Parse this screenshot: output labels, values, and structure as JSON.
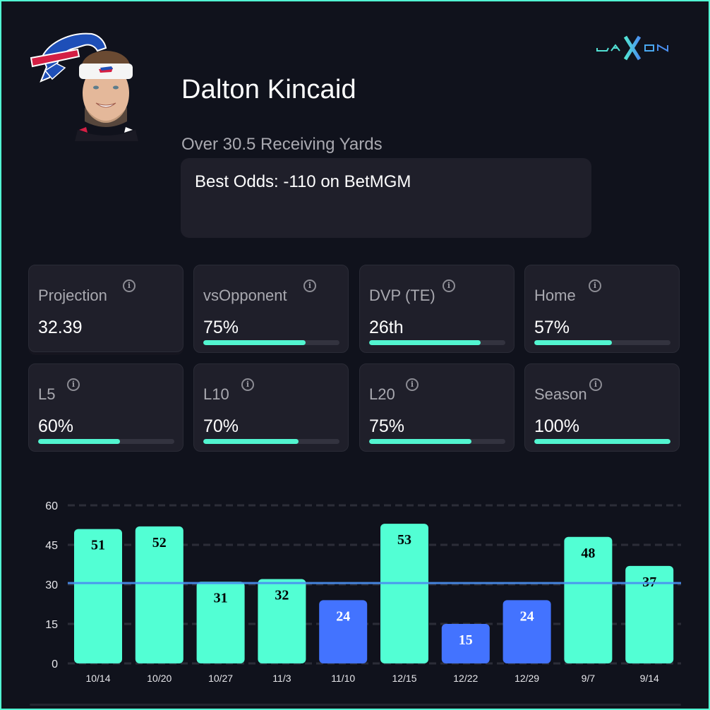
{
  "brand": {
    "name": "JAXON",
    "colors": {
      "accent": "#52ffd4",
      "blue": "#4a8ff0"
    }
  },
  "player": {
    "name": "Dalton Kincaid",
    "team_logo": "buffalo-bills-logo",
    "prop": "Over 30.5 Receiving Yards",
    "best_odds": "Best Odds: -110 on BetMGM"
  },
  "stats": [
    {
      "label": "Projection",
      "value": "32.39",
      "progress": null
    },
    {
      "label": "vsOpponent",
      "value": "75%",
      "progress": 0.75
    },
    {
      "label": "DVP (TE)",
      "value": "26th",
      "progress": 0.82
    },
    {
      "label": "Home",
      "value": "57%",
      "progress": 0.57
    },
    {
      "label": "L5",
      "value": "60%",
      "progress": 0.6
    },
    {
      "label": "L10",
      "value": "70%",
      "progress": 0.7
    },
    {
      "label": "L20",
      "value": "75%",
      "progress": 0.75
    },
    {
      "label": "Season",
      "value": "100%",
      "progress": 1.0
    }
  ],
  "info_icon": "info-icon",
  "chart_data": {
    "type": "bar",
    "title": "",
    "xlabel": "",
    "ylabel": "",
    "categories": [
      "10/14",
      "10/20",
      "10/27",
      "11/3",
      "11/10",
      "12/15",
      "12/22",
      "12/29",
      "9/7",
      "9/14"
    ],
    "values": [
      51,
      52,
      31,
      32,
      24,
      53,
      15,
      24,
      48,
      37
    ],
    "ylim": [
      0,
      60
    ],
    "yticks": [
      0,
      15,
      30,
      45,
      60
    ],
    "threshold": 30.5,
    "grid": true,
    "colors": {
      "over": "#52ffd4",
      "under": "#4373ff",
      "threshold": "#4a8ff0"
    }
  }
}
